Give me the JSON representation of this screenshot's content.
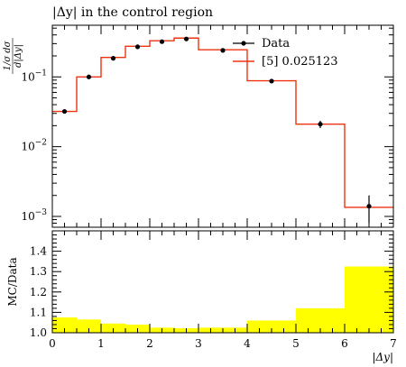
{
  "chart_data": [
    {
      "type": "line",
      "title": "|Δy| in the control region",
      "ylabel": "1/σ dσ/d|Δy|",
      "xlabel": "",
      "xlim": [
        0,
        7
      ],
      "ylim": [
        0.0007,
        0.55
      ],
      "yscale": "log",
      "y_ticks": [
        0.001,
        0.01,
        0.1
      ],
      "y_tick_labels": [
        {
          "base": "10",
          "exp": "−3"
        },
        {
          "base": "10",
          "exp": "−2"
        },
        {
          "base": "10",
          "exp": "−1"
        }
      ],
      "legend_placement": "top-right",
      "bin_edges": [
        0,
        0.5,
        1,
        1.5,
        2,
        2.5,
        3,
        4,
        5,
        6,
        7
      ],
      "series": [
        {
          "name": "Data",
          "marker": "point-with-errorbar",
          "color": "#000000",
          "x": [
            0.25,
            0.75,
            1.25,
            1.75,
            2.25,
            2.75,
            3.5,
            4.5,
            5.5,
            6.5
          ],
          "y": [
            0.032,
            0.1,
            0.185,
            0.27,
            0.32,
            0.35,
            0.24,
            0.087,
            0.021,
            0.0014
          ],
          "yerr": [
            0.001,
            0.003,
            0.004,
            0.005,
            0.005,
            0.005,
            0.004,
            0.002,
            0.0025,
            0.0006
          ]
        },
        {
          "name": "[5] 0.025123",
          "marker": "step",
          "color": "#ee3311",
          "values": [
            0.032,
            0.1,
            0.19,
            0.275,
            0.33,
            0.36,
            0.245,
            0.088,
            0.021,
            0.00135
          ]
        }
      ]
    },
    {
      "type": "bar",
      "title": "",
      "ylabel": "MC/Data",
      "xlabel": "|Δy|",
      "xlim": [
        0,
        7
      ],
      "ylim": [
        1.0,
        1.5
      ],
      "x_ticks": [
        0,
        1,
        2,
        3,
        4,
        5,
        6,
        7
      ],
      "y_ticks": [
        1.0,
        1.1,
        1.2,
        1.3,
        1.4
      ],
      "band_color": "#ffff00",
      "bin_edges": [
        0,
        0.5,
        1,
        1.5,
        2,
        2.5,
        3,
        4,
        5,
        6,
        7
      ],
      "values": [
        1.075,
        1.065,
        1.045,
        1.04,
        1.025,
        1.022,
        1.025,
        1.06,
        1.12,
        1.325
      ]
    }
  ]
}
